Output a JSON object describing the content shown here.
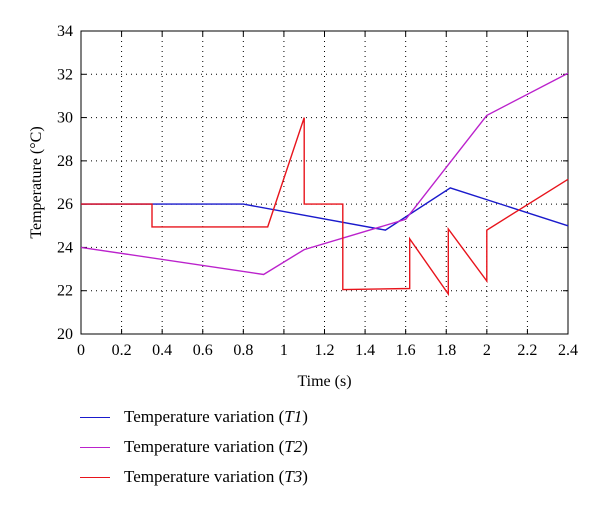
{
  "chart_data": {
    "type": "line",
    "xlabel": "Time (s)",
    "ylabel": "Temperature (°C)",
    "xlim": [
      0,
      2.4
    ],
    "ylim": [
      20,
      34
    ],
    "x_ticks": [
      "0",
      "0.2",
      "0.4",
      "0.6",
      "0.8",
      "1",
      "1.2",
      "1.4",
      "1.6",
      "1.8",
      "2",
      "2.2",
      "2.4"
    ],
    "y_ticks": [
      "20",
      "22",
      "24",
      "26",
      "28",
      "30",
      "32",
      "34"
    ],
    "grid": true,
    "legend_position": "bottom",
    "series": [
      {
        "name": "Temperature variation (T1)",
        "label_prefix": "Temperature variation (",
        "label_var": "T1",
        "label_suffix": ")",
        "color": "#1a1acc",
        "x": [
          0,
          0.8,
          1.5,
          1.82,
          2.4
        ],
        "y": [
          26.0,
          26.0,
          24.8,
          26.75,
          25.0
        ]
      },
      {
        "name": "Temperature variation (T2)",
        "label_prefix": "Temperature variation (",
        "label_var": "T2",
        "label_suffix": ")",
        "color": "#bb22cc",
        "x": [
          0,
          0.9,
          1.1,
          1.6,
          2.0,
          2.4
        ],
        "y": [
          24.0,
          22.75,
          23.9,
          25.3,
          30.1,
          32.05
        ]
      },
      {
        "name": "Temperature variation (T3)",
        "label_prefix": "Temperature variation (",
        "label_var": "T3",
        "label_suffix": ")",
        "color": "#e8141c",
        "x": [
          0,
          0.35,
          0.35,
          0.92,
          1.1,
          1.1,
          1.29,
          1.29,
          1.62,
          1.62,
          1.81,
          1.81,
          2.0,
          2.0,
          2.4
        ],
        "y": [
          26.0,
          26.0,
          24.95,
          24.95,
          30.0,
          26.0,
          26.0,
          22.05,
          22.1,
          24.4,
          21.85,
          24.85,
          22.45,
          24.8,
          27.15
        ]
      }
    ]
  }
}
